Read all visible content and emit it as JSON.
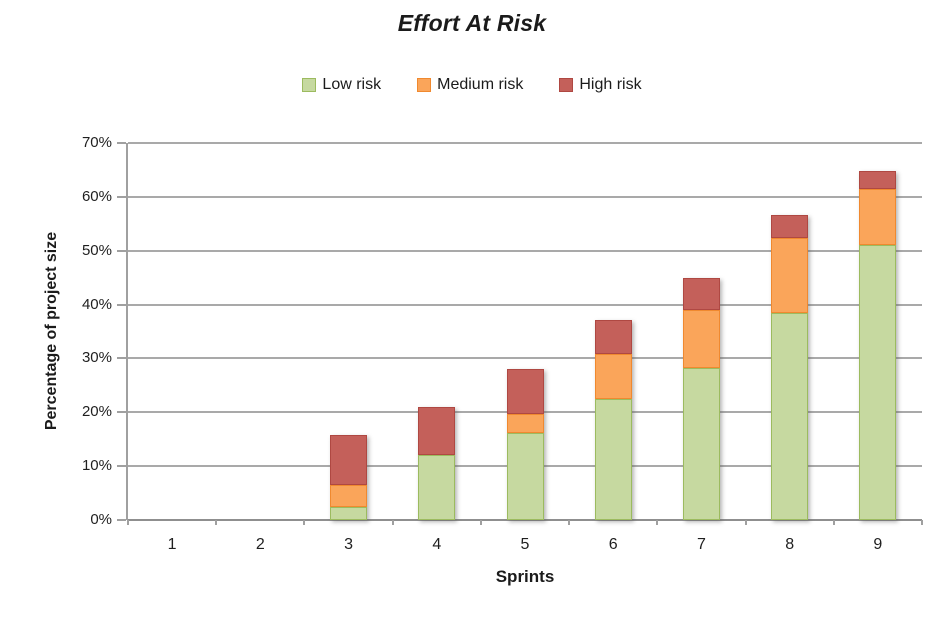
{
  "chart_data": {
    "type": "bar",
    "stacked": true,
    "title": "Effort At Risk",
    "xlabel": "Sprints",
    "ylabel": "Percentage of project size",
    "categories": [
      "1",
      "2",
      "3",
      "4",
      "5",
      "6",
      "7",
      "8",
      "9"
    ],
    "series": [
      {
        "name": "Low risk",
        "fill": "#C6D9A0",
        "border": "#9CBB5F",
        "values": [
          0,
          0,
          2.5,
          12,
          16.2,
          22.4,
          28.3,
          38.5,
          51
        ]
      },
      {
        "name": "Medium risk",
        "fill": "#FAA55A",
        "border": "#F0892F",
        "values": [
          0,
          0,
          4,
          0,
          3.5,
          8.4,
          10.7,
          13.9,
          10.5
        ]
      },
      {
        "name": "High risk",
        "fill": "#C4605A",
        "border": "#AF4842",
        "values": [
          0,
          0,
          9.3,
          9,
          8.3,
          6.4,
          6,
          4.2,
          3.3
        ]
      }
    ],
    "ylim": [
      0,
      70
    ],
    "ytick_step": 10,
    "ytick_labels": [
      "0%",
      "10%",
      "20%",
      "30%",
      "40%",
      "50%",
      "60%",
      "70%"
    ],
    "grid": true,
    "legend_position": "top",
    "colors": {
      "gridline": "#A9A9A9",
      "axis": "#8F8F8F",
      "text": "#1B1B1B"
    }
  }
}
